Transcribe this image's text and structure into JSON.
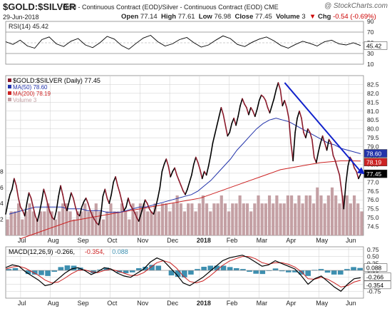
{
  "header": {
    "title": "$GOLD:$SILVER",
    "subtitle": "Gold - Continuous Contract (EOD)/Silver - Continuous Contract (EOD)  CME",
    "credit": "@ StockCharts.com",
    "date": "29-Jun-2018",
    "open_label": "Open",
    "open": "77.14",
    "high_label": "High",
    "high": "77.61",
    "low_label": "Low",
    "low": "76.98",
    "close_label": "Close",
    "close": "77.45",
    "volume_label": "Volume",
    "volume": "3",
    "chg_label": "Chg",
    "chg": "-0.54 (-0.69%)",
    "chg_icon": "down-triangle-icon"
  },
  "colors": {
    "price": "#8b1a2b",
    "price_dark": "#000000",
    "ma50": "#2233aa",
    "ma200": "#cc2222",
    "volume": "#c4a0a4",
    "trendline": "#1122cc",
    "rsi": "#000000",
    "macd": "#000000",
    "signal": "#cc2222",
    "histogram": "#3d8fb0",
    "grid": "#cccccc"
  },
  "chart_data": [
    {
      "type": "line",
      "panel": "rsi",
      "legend": "RSI(14) 45.42",
      "ylim": [
        10,
        90
      ],
      "yticks": [
        "90",
        "70",
        "50",
        "30",
        "10"
      ],
      "reference_lines": [
        70,
        30
      ],
      "current_value": "45.42",
      "series": [
        {
          "name": "RSI(14)",
          "values": [
            52,
            47,
            55,
            44,
            40,
            56,
            61,
            48,
            43,
            53,
            58,
            46,
            41,
            50,
            62,
            57,
            45,
            38,
            49,
            59,
            64,
            52,
            44,
            48,
            56,
            60,
            50,
            42,
            46,
            55,
            63,
            58,
            47,
            43,
            51,
            57,
            61,
            54,
            45,
            40,
            47,
            53,
            49,
            44,
            52,
            55,
            48,
            46,
            50,
            45
          ]
        }
      ]
    },
    {
      "type": "line",
      "panel": "price",
      "legend": "$GOLD:$SILVER (Daily) 77.45",
      "legend_items": [
        {
          "label": "$GOLD:$SILVER (Daily) 77.45",
          "color": "#8b1a2b"
        },
        {
          "label": "MA(50) 78.60",
          "color": "#2233aa"
        },
        {
          "label": "MA(200) 78.19",
          "color": "#cc2222"
        },
        {
          "label": "Volume 3",
          "color": "#c4a0a4"
        }
      ],
      "ylim": [
        74.0,
        83.0
      ],
      "yticks": [
        "82.5",
        "82.0",
        "81.5",
        "81.0",
        "80.5",
        "80.0",
        "79.5",
        "79.0",
        "78.5",
        "78.0",
        "77.5",
        "77.0",
        "76.5",
        "76.0",
        "75.5",
        "75.0",
        "74.5"
      ],
      "left_ticks": [
        "8",
        "6",
        "4",
        "2"
      ],
      "value_tags": [
        "78.60",
        "78.19",
        "77.45"
      ],
      "x_labels": [
        "Jul",
        "Aug",
        "Sep",
        "Oct",
        "Nov",
        "Dec",
        "2018",
        "Feb",
        "Mar",
        "Apr",
        "May",
        "Jun"
      ],
      "series": [
        {
          "name": "$GOLD:$SILVER (Daily)",
          "values": [
            75.2,
            75.8,
            76.3,
            76.6,
            77.2,
            76.8,
            76.1,
            75.6,
            75.4,
            75.1,
            75.8,
            76.4,
            76.1,
            75.6,
            75.1,
            74.8,
            75.3,
            75.9,
            76.6,
            76.2,
            75.7,
            75.3,
            75.0,
            74.9,
            75.4,
            76.2,
            76.8,
            76.3,
            75.7,
            75.4,
            75.9,
            76.4,
            76.1,
            75.6,
            75.2,
            75.1,
            75.6,
            75.9,
            76.1,
            75.8,
            75.4,
            75.1,
            74.9,
            74.7,
            74.6,
            75.1,
            76.2,
            76.6,
            76.1,
            75.8,
            76.3,
            77.0,
            77.3,
            76.8,
            76.4,
            75.9,
            75.4,
            75.6,
            76.1,
            75.7,
            75.5,
            75.3,
            75.0,
            74.8,
            75.2,
            75.6,
            76.0,
            75.8,
            75.5,
            75.3,
            75.2,
            75.6,
            76.1,
            76.7,
            77.6,
            78.0,
            78.3,
            77.9,
            77.3,
            77.6,
            77.8,
            77.4,
            77.1,
            76.8,
            76.5,
            76.3,
            76.6,
            77.0,
            77.4,
            78.0,
            78.4,
            78.1,
            77.7,
            77.2,
            77.6,
            77.4,
            77.9,
            78.5,
            79.2,
            79.7,
            80.2,
            80.7,
            81.2,
            80.8,
            80.2,
            79.6,
            79.8,
            80.3,
            80.6,
            80.2,
            80.7,
            81.3,
            81.7,
            81.4,
            81.2,
            80.8,
            81.2,
            81.0,
            80.7,
            81.1,
            81.6,
            81.9,
            81.8,
            81.6,
            81.2,
            80.9,
            81.3,
            81.7,
            82.2,
            82.6,
            82.2,
            81.3,
            81.6,
            81.2,
            80.6,
            79.2,
            78.2,
            79.8,
            80.6,
            81.0,
            80.6,
            79.8,
            79.5,
            80.0,
            79.8,
            79.4,
            78.4,
            78.1,
            78.7,
            79.2,
            79.6,
            79.2,
            78.8,
            79.4,
            79.2,
            78.5,
            78.2,
            77.8,
            77.4,
            76.5,
            75.5,
            76.9,
            77.9,
            78.4,
            78.2,
            77.8,
            77.6,
            77.2,
            77.45
          ]
        },
        {
          "name": "MA(50)",
          "values": [
            75.2,
            75.3,
            75.4,
            75.5,
            75.6,
            75.6,
            75.6,
            75.6,
            75.6,
            75.5,
            75.5,
            75.5,
            75.4,
            75.4,
            75.4,
            75.3,
            75.3,
            75.3,
            75.4,
            75.5,
            75.6,
            75.6,
            75.7,
            75.8,
            75.9,
            76.0,
            76.1,
            76.2,
            76.3,
            76.5,
            76.8,
            77.1,
            77.5,
            77.9,
            78.3,
            78.8,
            79.2,
            79.6,
            80.0,
            80.3,
            80.5,
            80.6,
            80.5,
            80.4,
            80.2,
            80.0,
            79.8,
            79.6,
            79.4,
            79.2,
            79.1,
            78.9,
            78.8,
            78.7,
            78.6
          ]
        },
        {
          "name": "MA(200)",
          "values": [
            73.8,
            74.0,
            74.2,
            74.4,
            74.6,
            74.8,
            74.9,
            75.0,
            75.1,
            75.2,
            75.3,
            75.4,
            75.5,
            75.6,
            75.7,
            75.8,
            75.9,
            76.0,
            76.1,
            76.3,
            76.5,
            76.7,
            76.9,
            77.1,
            77.3,
            77.5,
            77.7,
            77.8,
            77.9,
            78.0,
            78.1,
            78.15,
            78.2,
            78.2,
            78.19
          ]
        },
        {
          "name": "Volume",
          "values": [
            2,
            3,
            3,
            4,
            2,
            3,
            4,
            3,
            2,
            3,
            3,
            4,
            3,
            2,
            3,
            4,
            4,
            3,
            2,
            3,
            3,
            4,
            3,
            3,
            4,
            3,
            2,
            3,
            4,
            3,
            3,
            4,
            3,
            2,
            4,
            3,
            4,
            4,
            3,
            3,
            4,
            3,
            4,
            4,
            3,
            4,
            5,
            4,
            3,
            4,
            4,
            3,
            4,
            5,
            4,
            3,
            4,
            4,
            5,
            4,
            3,
            4,
            4,
            5,
            4,
            4,
            3,
            4,
            5,
            4,
            4,
            5,
            4,
            5,
            4,
            4,
            5,
            5,
            4,
            5,
            4,
            5,
            5,
            4,
            6,
            5,
            4,
            5,
            6,
            5,
            4,
            5,
            5,
            4,
            5,
            4,
            3
          ]
        }
      ],
      "trendline": {
        "from": {
          "x": "Apr",
          "y": 82.6
        },
        "to": {
          "x": "Jun",
          "y": 77.6
        }
      }
    },
    {
      "type": "line",
      "panel": "macd",
      "legend_items": [
        {
          "label": "MACD(12,26,9) -0.266,",
          "color": "#000000"
        },
        {
          "label": "-0.354,",
          "color": "#cc2222"
        },
        {
          "label": "0.088",
          "color": "#3d8fb0"
        }
      ],
      "ylim": [
        -1.0,
        0.85
      ],
      "yticks": [
        "0.75",
        "0.50",
        "0.25",
        "0.00",
        "-0.25",
        "-0.50",
        "-0.75"
      ],
      "value_tags": [
        "0.088",
        "-0.266",
        "-0.354"
      ],
      "x_labels": [
        "Jul",
        "Aug",
        "Sep",
        "Oct",
        "Nov",
        "Dec",
        "2018",
        "Feb",
        "Mar",
        "Apr",
        "May",
        "Jun"
      ],
      "series": [
        {
          "name": "MACD(12,26,9)",
          "values": [
            0.1,
            0.2,
            0.15,
            -0.05,
            -0.2,
            -0.35,
            -0.55,
            -0.5,
            -0.3,
            -0.1,
            0.05,
            0.1,
            0.0,
            -0.15,
            -0.05,
            0.1,
            0.05,
            -0.1,
            -0.2,
            -0.25,
            -0.1,
            0.05,
            0.3,
            0.45,
            0.35,
            0.1,
            -0.15,
            -0.45,
            -0.55,
            -0.4,
            -0.25,
            -0.05,
            0.15,
            0.35,
            0.45,
            0.5,
            0.55,
            0.45,
            0.3,
            0.15,
            0.2,
            0.35,
            0.25,
            0.15,
            0.05,
            -0.2,
            -0.5,
            -0.3,
            -0.2,
            -0.4,
            -0.6,
            -0.75,
            -0.5,
            -0.3,
            -0.266
          ]
        },
        {
          "name": "Signal",
          "values": [
            0.05,
            0.12,
            0.15,
            0.08,
            -0.05,
            -0.18,
            -0.35,
            -0.45,
            -0.42,
            -0.28,
            -0.12,
            0.0,
            0.02,
            -0.05,
            -0.08,
            0.0,
            0.04,
            -0.02,
            -0.1,
            -0.18,
            -0.18,
            -0.08,
            0.1,
            0.28,
            0.35,
            0.28,
            0.08,
            -0.2,
            -0.4,
            -0.45,
            -0.38,
            -0.22,
            -0.02,
            0.18,
            0.33,
            0.42,
            0.5,
            0.5,
            0.42,
            0.28,
            0.22,
            0.28,
            0.28,
            0.22,
            0.12,
            -0.05,
            -0.3,
            -0.32,
            -0.25,
            -0.32,
            -0.45,
            -0.6,
            -0.55,
            -0.42,
            -0.354
          ]
        }
      ]
    }
  ]
}
